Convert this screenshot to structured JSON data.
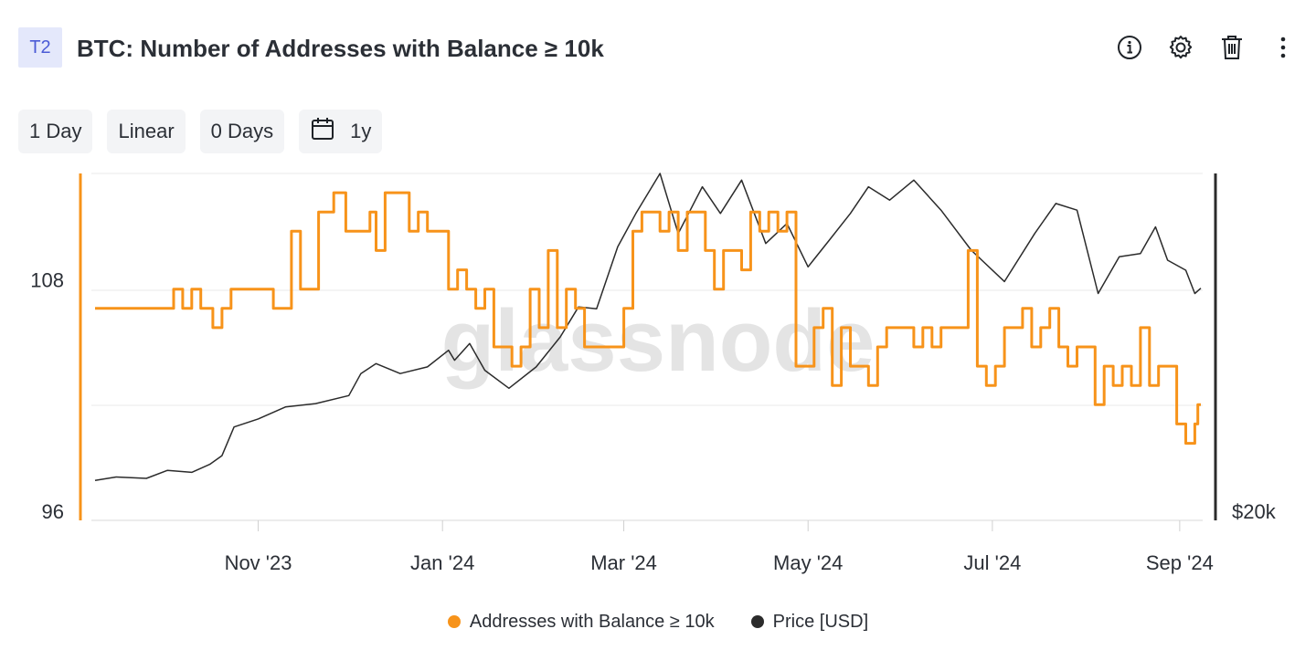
{
  "header": {
    "badge": "T2",
    "title": "BTC: Number of Addresses with Balance ≥ 10k",
    "icons": [
      "info-icon",
      "gear-icon",
      "trash-icon",
      "more-vertical-icon"
    ]
  },
  "controls": {
    "resolution": "1 Day",
    "scale": "Linear",
    "sma": "0 Days",
    "range": "1y",
    "range_icon": "calendar-icon"
  },
  "colors": {
    "addresses": "#f7931a",
    "price": "#2b2b2b",
    "grid": "#e8e8e8"
  },
  "watermark": "glassnode",
  "chart_data": {
    "type": "line",
    "title": "BTC: Number of Addresses with Balance ≥ 10k",
    "left_axis": {
      "ticks": [
        "108",
        "96"
      ],
      "range": [
        96,
        114
      ]
    },
    "right_axis": {
      "ticks": [
        "$20k"
      ]
    },
    "x_ticks": [
      "Nov '23",
      "Jan '24",
      "Mar '24",
      "May '24",
      "Jul '24",
      "Sep '24"
    ],
    "x_range": [
      "2023-09-08",
      "2024-09-08"
    ],
    "grid": true,
    "legend_position": "bottom",
    "series": [
      {
        "name": "Addresses with Balance ≥ 10k",
        "axis": "left",
        "points": [
          [
            "2023-09-08",
            107
          ],
          [
            "2023-10-01",
            107
          ],
          [
            "2023-10-04",
            108
          ],
          [
            "2023-10-07",
            107
          ],
          [
            "2023-10-10",
            108
          ],
          [
            "2023-10-13",
            107
          ],
          [
            "2023-10-17",
            106
          ],
          [
            "2023-10-20",
            107
          ],
          [
            "2023-10-23",
            108
          ],
          [
            "2023-11-04",
            108
          ],
          [
            "2023-11-06",
            107
          ],
          [
            "2023-11-12",
            111
          ],
          [
            "2023-11-15",
            108
          ],
          [
            "2023-11-21",
            112
          ],
          [
            "2023-11-26",
            113
          ],
          [
            "2023-11-30",
            111
          ],
          [
            "2023-12-06",
            111
          ],
          [
            "2023-12-08",
            112
          ],
          [
            "2023-12-10",
            110
          ],
          [
            "2023-12-13",
            113
          ],
          [
            "2023-12-18",
            113
          ],
          [
            "2023-12-21",
            111
          ],
          [
            "2023-12-24",
            112
          ],
          [
            "2023-12-27",
            111
          ],
          [
            "2023-12-30",
            111
          ],
          [
            "2024-01-03",
            108
          ],
          [
            "2024-01-06",
            109
          ],
          [
            "2024-01-09",
            108
          ],
          [
            "2024-01-12",
            107
          ],
          [
            "2024-01-15",
            108
          ],
          [
            "2024-01-18",
            105
          ],
          [
            "2024-01-21",
            105
          ],
          [
            "2024-01-24",
            104
          ],
          [
            "2024-01-27",
            105
          ],
          [
            "2024-01-30",
            108
          ],
          [
            "2024-02-02",
            106
          ],
          [
            "2024-02-05",
            110
          ],
          [
            "2024-02-08",
            106
          ],
          [
            "2024-02-11",
            108
          ],
          [
            "2024-02-14",
            107
          ],
          [
            "2024-02-17",
            105
          ],
          [
            "2024-02-20",
            105
          ],
          [
            "2024-02-23",
            105
          ],
          [
            "2024-02-26",
            105
          ],
          [
            "2024-03-01",
            107
          ],
          [
            "2024-03-04",
            111
          ],
          [
            "2024-03-07",
            112
          ],
          [
            "2024-03-10",
            112
          ],
          [
            "2024-03-13",
            111
          ],
          [
            "2024-03-16",
            112
          ],
          [
            "2024-03-19",
            110
          ],
          [
            "2024-03-22",
            112
          ],
          [
            "2024-03-25",
            112
          ],
          [
            "2024-03-28",
            110
          ],
          [
            "2024-03-31",
            108
          ],
          [
            "2024-04-03",
            110
          ],
          [
            "2024-04-06",
            110
          ],
          [
            "2024-04-09",
            109
          ],
          [
            "2024-04-12",
            112
          ],
          [
            "2024-04-15",
            111
          ],
          [
            "2024-04-18",
            112
          ],
          [
            "2024-04-21",
            111
          ],
          [
            "2024-04-24",
            112
          ],
          [
            "2024-04-27",
            104
          ],
          [
            "2024-04-30",
            104
          ],
          [
            "2024-05-03",
            106
          ],
          [
            "2024-05-06",
            107
          ],
          [
            "2024-05-09",
            103
          ],
          [
            "2024-05-12",
            106
          ],
          [
            "2024-05-15",
            104
          ],
          [
            "2024-05-18",
            104
          ],
          [
            "2024-05-21",
            103
          ],
          [
            "2024-05-24",
            105
          ],
          [
            "2024-05-27",
            106
          ],
          [
            "2024-05-30",
            106
          ],
          [
            "2024-06-02",
            106
          ],
          [
            "2024-06-05",
            105
          ],
          [
            "2024-06-08",
            106
          ],
          [
            "2024-06-11",
            105
          ],
          [
            "2024-06-14",
            106
          ],
          [
            "2024-06-17",
            106
          ],
          [
            "2024-06-20",
            106
          ],
          [
            "2024-06-23",
            110
          ],
          [
            "2024-06-26",
            104
          ],
          [
            "2024-06-29",
            103
          ],
          [
            "2024-07-02",
            104
          ],
          [
            "2024-07-05",
            106
          ],
          [
            "2024-07-08",
            106
          ],
          [
            "2024-07-11",
            107
          ],
          [
            "2024-07-14",
            105
          ],
          [
            "2024-07-17",
            106
          ],
          [
            "2024-07-20",
            107
          ],
          [
            "2024-07-23",
            105
          ],
          [
            "2024-07-26",
            104
          ],
          [
            "2024-07-29",
            105
          ],
          [
            "2024-08-01",
            105
          ],
          [
            "2024-08-04",
            102
          ],
          [
            "2024-08-07",
            104
          ],
          [
            "2024-08-10",
            103
          ],
          [
            "2024-08-13",
            104
          ],
          [
            "2024-08-16",
            103
          ],
          [
            "2024-08-19",
            106
          ],
          [
            "2024-08-22",
            103
          ],
          [
            "2024-08-25",
            104
          ],
          [
            "2024-08-28",
            104
          ],
          [
            "2024-08-31",
            101
          ],
          [
            "2024-09-03",
            100
          ],
          [
            "2024-09-06",
            101
          ],
          [
            "2024-09-07",
            102
          ],
          [
            "2024-09-08",
            102
          ]
        ]
      },
      {
        "name": "Price [USD]",
        "axis": "right",
        "unit": "USD",
        "scale_range": [
          20000,
          72000
        ],
        "points": [
          [
            "2023-09-08",
            26000
          ],
          [
            "2023-09-15",
            26500
          ],
          [
            "2023-09-25",
            26300
          ],
          [
            "2023-10-02",
            27500
          ],
          [
            "2023-10-10",
            27200
          ],
          [
            "2023-10-16",
            28400
          ],
          [
            "2023-10-20",
            29700
          ],
          [
            "2023-10-24",
            34000
          ],
          [
            "2023-11-01",
            35200
          ],
          [
            "2023-11-10",
            37000
          ],
          [
            "2023-11-20",
            37500
          ],
          [
            "2023-12-01",
            38700
          ],
          [
            "2023-12-05",
            42000
          ],
          [
            "2023-12-10",
            43500
          ],
          [
            "2023-12-18",
            42000
          ],
          [
            "2023-12-27",
            43000
          ],
          [
            "2024-01-03",
            45500
          ],
          [
            "2024-01-05",
            44000
          ],
          [
            "2024-01-10",
            46500
          ],
          [
            "2024-01-15",
            42500
          ],
          [
            "2024-01-23",
            39800
          ],
          [
            "2024-02-01",
            43000
          ],
          [
            "2024-02-09",
            47500
          ],
          [
            "2024-02-15",
            52000
          ],
          [
            "2024-02-21",
            51700
          ],
          [
            "2024-02-28",
            61000
          ],
          [
            "2024-03-05",
            66000
          ],
          [
            "2024-03-13",
            72000
          ],
          [
            "2024-03-19",
            63000
          ],
          [
            "2024-03-27",
            70000
          ],
          [
            "2024-04-02",
            66000
          ],
          [
            "2024-04-09",
            71000
          ],
          [
            "2024-04-17",
            61500
          ],
          [
            "2024-04-24",
            64500
          ],
          [
            "2024-05-01",
            58000
          ],
          [
            "2024-05-08",
            62000
          ],
          [
            "2024-05-15",
            66000
          ],
          [
            "2024-05-21",
            70000
          ],
          [
            "2024-05-28",
            68000
          ],
          [
            "2024-06-05",
            71000
          ],
          [
            "2024-06-14",
            66500
          ],
          [
            "2024-06-24",
            60500
          ],
          [
            "2024-07-05",
            55800
          ],
          [
            "2024-07-15",
            63000
          ],
          [
            "2024-07-22",
            67500
          ],
          [
            "2024-07-29",
            66500
          ],
          [
            "2024-08-05",
            54000
          ],
          [
            "2024-08-12",
            59500
          ],
          [
            "2024-08-19",
            60000
          ],
          [
            "2024-08-24",
            64000
          ],
          [
            "2024-08-28",
            59000
          ],
          [
            "2024-09-03",
            57500
          ],
          [
            "2024-09-06",
            54000
          ],
          [
            "2024-09-08",
            54800
          ]
        ]
      }
    ]
  },
  "legend": [
    {
      "label": "Addresses with Balance ≥ 10k",
      "color": "#f7931a"
    },
    {
      "label": "Price [USD]",
      "color": "#2b2b2b"
    }
  ]
}
